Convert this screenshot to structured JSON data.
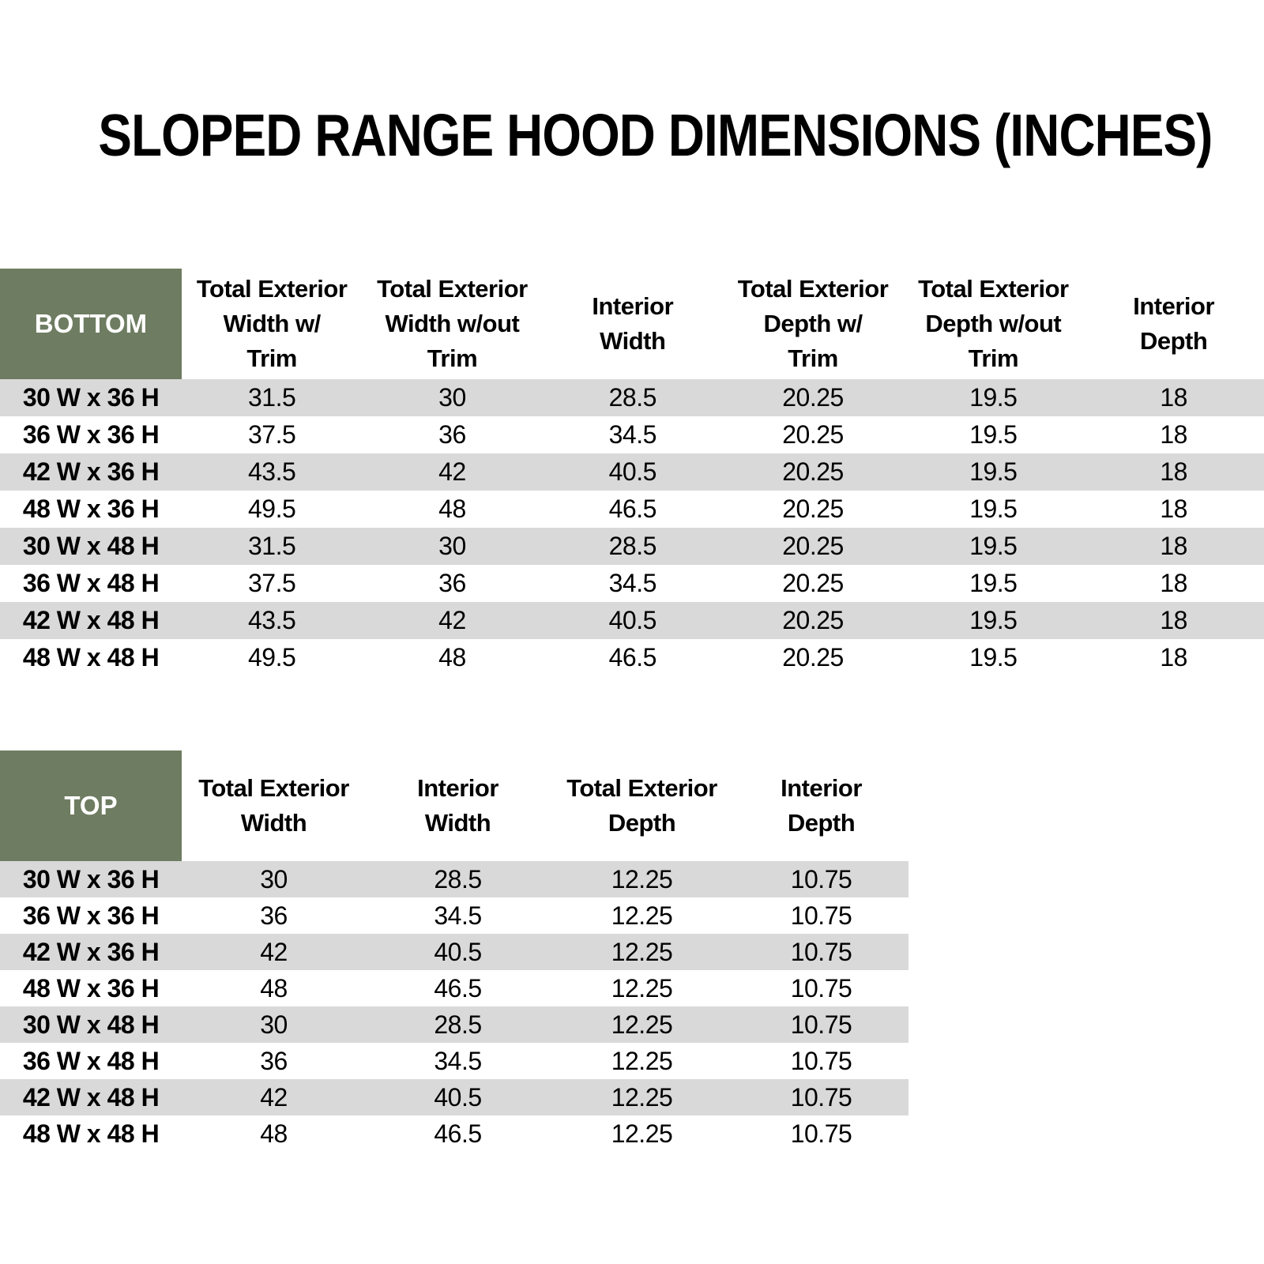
{
  "title": "SLOPED RANGE HOOD DIMENSIONS (INCHES)",
  "colors": {
    "header_green": "#6E7C61",
    "row_gray": "#D9D9D9",
    "row_white": "#FFFFFF",
    "text_black": "#000000",
    "corner_text_white": "#FFFFFF"
  },
  "bottom_table": {
    "corner_label": "BOTTOM",
    "columns": [
      "Total Exterior\nWidth w/\nTrim",
      "Total Exterior\nWidth w/out\nTrim",
      "Interior\nWidth",
      "Total Exterior\nDepth w/\nTrim",
      "Total Exterior\nDepth w/out\nTrim",
      "Interior\nDepth"
    ],
    "rows": [
      {
        "label": "30 W x 36 H",
        "values": [
          "31.5",
          "30",
          "28.5",
          "20.25",
          "19.5",
          "18"
        ]
      },
      {
        "label": "36 W x 36 H",
        "values": [
          "37.5",
          "36",
          "34.5",
          "20.25",
          "19.5",
          "18"
        ]
      },
      {
        "label": "42 W x 36 H",
        "values": [
          "43.5",
          "42",
          "40.5",
          "20.25",
          "19.5",
          "18"
        ]
      },
      {
        "label": "48 W x 36 H",
        "values": [
          "49.5",
          "48",
          "46.5",
          "20.25",
          "19.5",
          "18"
        ]
      },
      {
        "label": "30 W x 48 H",
        "values": [
          "31.5",
          "30",
          "28.5",
          "20.25",
          "19.5",
          "18"
        ]
      },
      {
        "label": "36 W x 48 H",
        "values": [
          "37.5",
          "36",
          "34.5",
          "20.25",
          "19.5",
          "18"
        ]
      },
      {
        "label": "42 W x 48 H",
        "values": [
          "43.5",
          "42",
          "40.5",
          "20.25",
          "19.5",
          "18"
        ]
      },
      {
        "label": "48 W x 48 H",
        "values": [
          "49.5",
          "48",
          "46.5",
          "20.25",
          "19.5",
          "18"
        ]
      }
    ]
  },
  "top_table": {
    "corner_label": "TOP",
    "columns": [
      "Total Exterior\nWidth",
      "Interior\nWidth",
      "Total Exterior\nDepth",
      "Interior\nDepth"
    ],
    "rows": [
      {
        "label": "30 W x 36 H",
        "values": [
          "30",
          "28.5",
          "12.25",
          "10.75"
        ]
      },
      {
        "label": "36 W x 36 H",
        "values": [
          "36",
          "34.5",
          "12.25",
          "10.75"
        ]
      },
      {
        "label": "42 W x 36 H",
        "values": [
          "42",
          "40.5",
          "12.25",
          "10.75"
        ]
      },
      {
        "label": "48 W x 36 H",
        "values": [
          "48",
          "46.5",
          "12.25",
          "10.75"
        ]
      },
      {
        "label": "30 W x 48 H",
        "values": [
          "30",
          "28.5",
          "12.25",
          "10.75"
        ]
      },
      {
        "label": "36 W x 48 H",
        "values": [
          "36",
          "34.5",
          "12.25",
          "10.75"
        ]
      },
      {
        "label": "42 W x 48 H",
        "values": [
          "42",
          "40.5",
          "12.25",
          "10.75"
        ]
      },
      {
        "label": "48 W x 48 H",
        "values": [
          "48",
          "46.5",
          "12.25",
          "10.75"
        ]
      }
    ]
  }
}
